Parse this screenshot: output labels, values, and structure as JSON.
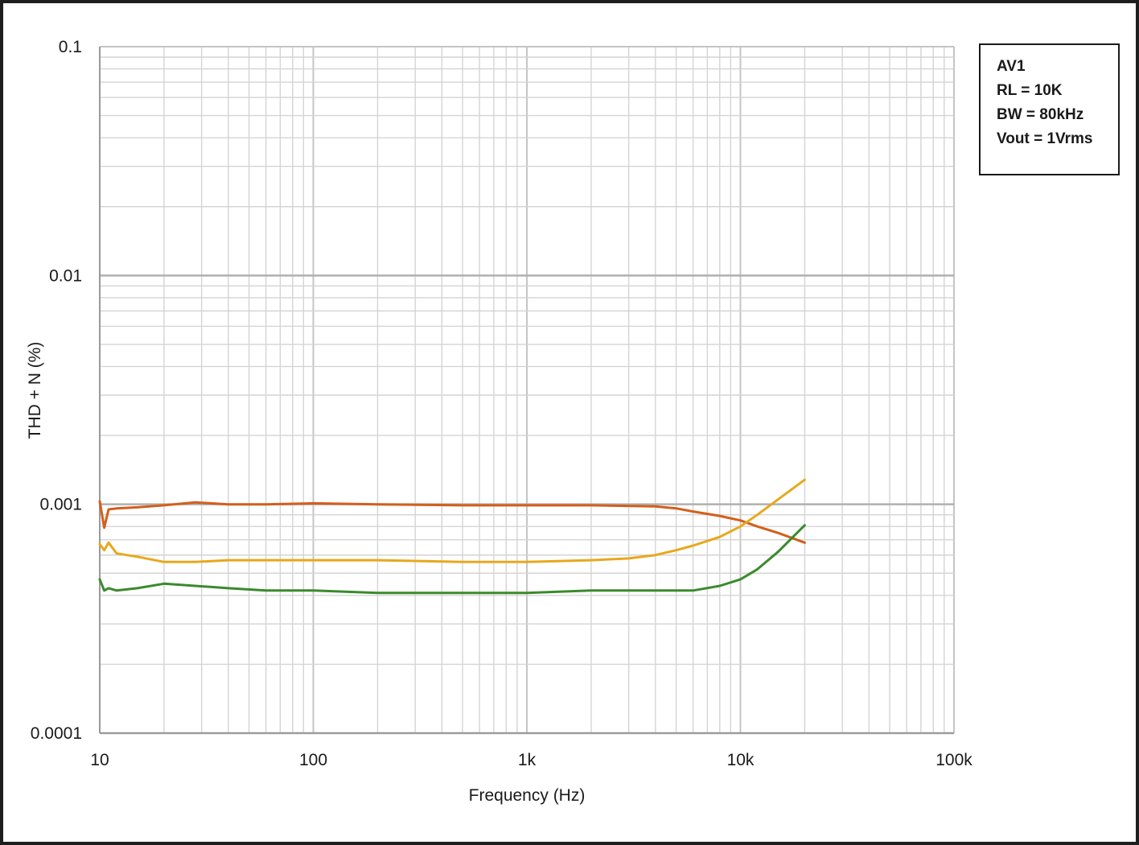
{
  "chart_data": {
    "type": "line",
    "xlabel": "Frequency (Hz)",
    "ylabel": "THD + N (%)",
    "x_scale": "log",
    "y_scale": "log",
    "xlim": [
      10,
      100000
    ],
    "ylim": [
      0.0001,
      0.1
    ],
    "x_ticks": [
      "10",
      "100",
      "1k",
      "10k",
      "100k"
    ],
    "y_ticks": [
      "0.1",
      "0.01",
      "0.001",
      "0.0001"
    ],
    "grid": true,
    "legend_position": "top-right",
    "annotation": [
      "AV1",
      "RL = 10K",
      "BW = 80kHz",
      "Vout = 1Vrms"
    ],
    "colors": [
      "#d35f1b",
      "#e8a81c",
      "#3a8a2c"
    ],
    "series": [
      {
        "x": [
          10,
          10.5,
          11,
          12,
          15,
          20,
          28,
          40,
          60,
          100,
          200,
          500,
          1000,
          2000,
          4000,
          5000,
          6000,
          8000,
          10000,
          12000,
          15000,
          20000
        ],
        "y": [
          0.00103,
          0.00079,
          0.00095,
          0.00096,
          0.00097,
          0.00099,
          0.00102,
          0.001,
          0.001,
          0.00101,
          0.001,
          0.00099,
          0.00099,
          0.00099,
          0.00098,
          0.00096,
          0.00093,
          0.00089,
          0.00085,
          0.0008,
          0.00075,
          0.00068
        ]
      },
      {
        "x": [
          10,
          10.5,
          11,
          12,
          15,
          20,
          28,
          40,
          60,
          100,
          200,
          500,
          1000,
          2000,
          3000,
          4000,
          5000,
          6000,
          8000,
          10000,
          12000,
          15000,
          20000
        ],
        "y": [
          0.00067,
          0.00063,
          0.00068,
          0.00061,
          0.00059,
          0.00056,
          0.00056,
          0.00057,
          0.00057,
          0.00057,
          0.00057,
          0.00056,
          0.00056,
          0.00057,
          0.00058,
          0.0006,
          0.00063,
          0.00066,
          0.00072,
          0.0008,
          0.0009,
          0.00105,
          0.00128
        ]
      },
      {
        "x": [
          10,
          10.5,
          11,
          12,
          15,
          20,
          28,
          40,
          60,
          100,
          200,
          500,
          1000,
          2000,
          4000,
          6000,
          8000,
          10000,
          12000,
          15000,
          20000
        ],
        "y": [
          0.00047,
          0.00042,
          0.00043,
          0.00042,
          0.00043,
          0.00045,
          0.00044,
          0.00043,
          0.00042,
          0.00042,
          0.00041,
          0.00041,
          0.00041,
          0.00042,
          0.00042,
          0.00042,
          0.00044,
          0.00047,
          0.00052,
          0.00062,
          0.00081
        ]
      }
    ]
  }
}
